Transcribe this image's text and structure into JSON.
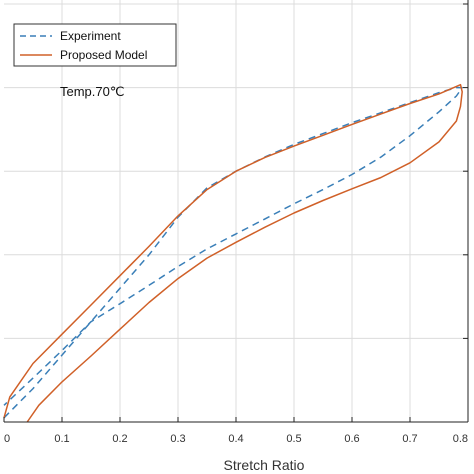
{
  "chart_data": {
    "type": "line",
    "title": "",
    "xlabel": "Stretch Ratio",
    "ylabel": "",
    "xlim": [
      0,
      0.8
    ],
    "ylim": [
      0,
      1.0
    ],
    "x_ticks": [
      0,
      0.1,
      0.2,
      0.3,
      0.4,
      0.5,
      0.6,
      0.7,
      0.8
    ],
    "x_tick_labels": [
      "0",
      "0.1",
      "0.2",
      "0.3",
      "0.4",
      "0.5",
      "0.6",
      "0.7",
      "0.8"
    ],
    "y_gridlines": [
      0.2,
      0.4,
      0.6,
      0.8,
      1.0
    ],
    "grid": true,
    "legend_position": "top-left",
    "annotation": "Temp.70℃",
    "series": [
      {
        "name": "Experiment",
        "style": "dashed",
        "color": "#3A7FB8",
        "x": [
          0.0,
          0.05,
          0.1,
          0.15,
          0.2,
          0.25,
          0.3,
          0.35,
          0.4,
          0.45,
          0.5,
          0.55,
          0.6,
          0.65,
          0.7,
          0.75,
          0.78,
          0.79,
          0.78,
          0.75,
          0.7,
          0.65,
          0.6,
          0.55,
          0.5,
          0.45,
          0.4,
          0.35,
          0.3,
          0.25,
          0.2,
          0.15,
          0.1,
          0.05,
          0.0
        ],
        "y": [
          0.01,
          0.08,
          0.16,
          0.24,
          0.32,
          0.4,
          0.49,
          0.56,
          0.6,
          0.634,
          0.664,
          0.69,
          0.716,
          0.74,
          0.764,
          0.788,
          0.8,
          0.8,
          0.78,
          0.742,
          0.685,
          0.634,
          0.592,
          0.556,
          0.522,
          0.486,
          0.45,
          0.414,
          0.372,
          0.327,
          0.283,
          0.24,
          0.171,
          0.105,
          0.04
        ]
      },
      {
        "name": "Proposed Model",
        "style": "solid",
        "color": "#D06028",
        "x": [
          0.0,
          0.01,
          0.05,
          0.1,
          0.15,
          0.2,
          0.25,
          0.3,
          0.35,
          0.4,
          0.45,
          0.5,
          0.55,
          0.6,
          0.65,
          0.7,
          0.75,
          0.787,
          0.79,
          0.787,
          0.78,
          0.75,
          0.7,
          0.65,
          0.6,
          0.55,
          0.5,
          0.45,
          0.4,
          0.35,
          0.3,
          0.25,
          0.2,
          0.15,
          0.1,
          0.06,
          0.04
        ],
        "y": [
          0.01,
          0.06,
          0.14,
          0.21,
          0.28,
          0.35,
          0.42,
          0.493,
          0.556,
          0.6,
          0.633,
          0.66,
          0.686,
          0.712,
          0.737,
          0.762,
          0.785,
          0.807,
          0.79,
          0.755,
          0.72,
          0.67,
          0.62,
          0.585,
          0.558,
          0.53,
          0.5,
          0.466,
          0.43,
          0.392,
          0.343,
          0.286,
          0.222,
          0.158,
          0.096,
          0.04,
          0.0
        ]
      }
    ]
  }
}
